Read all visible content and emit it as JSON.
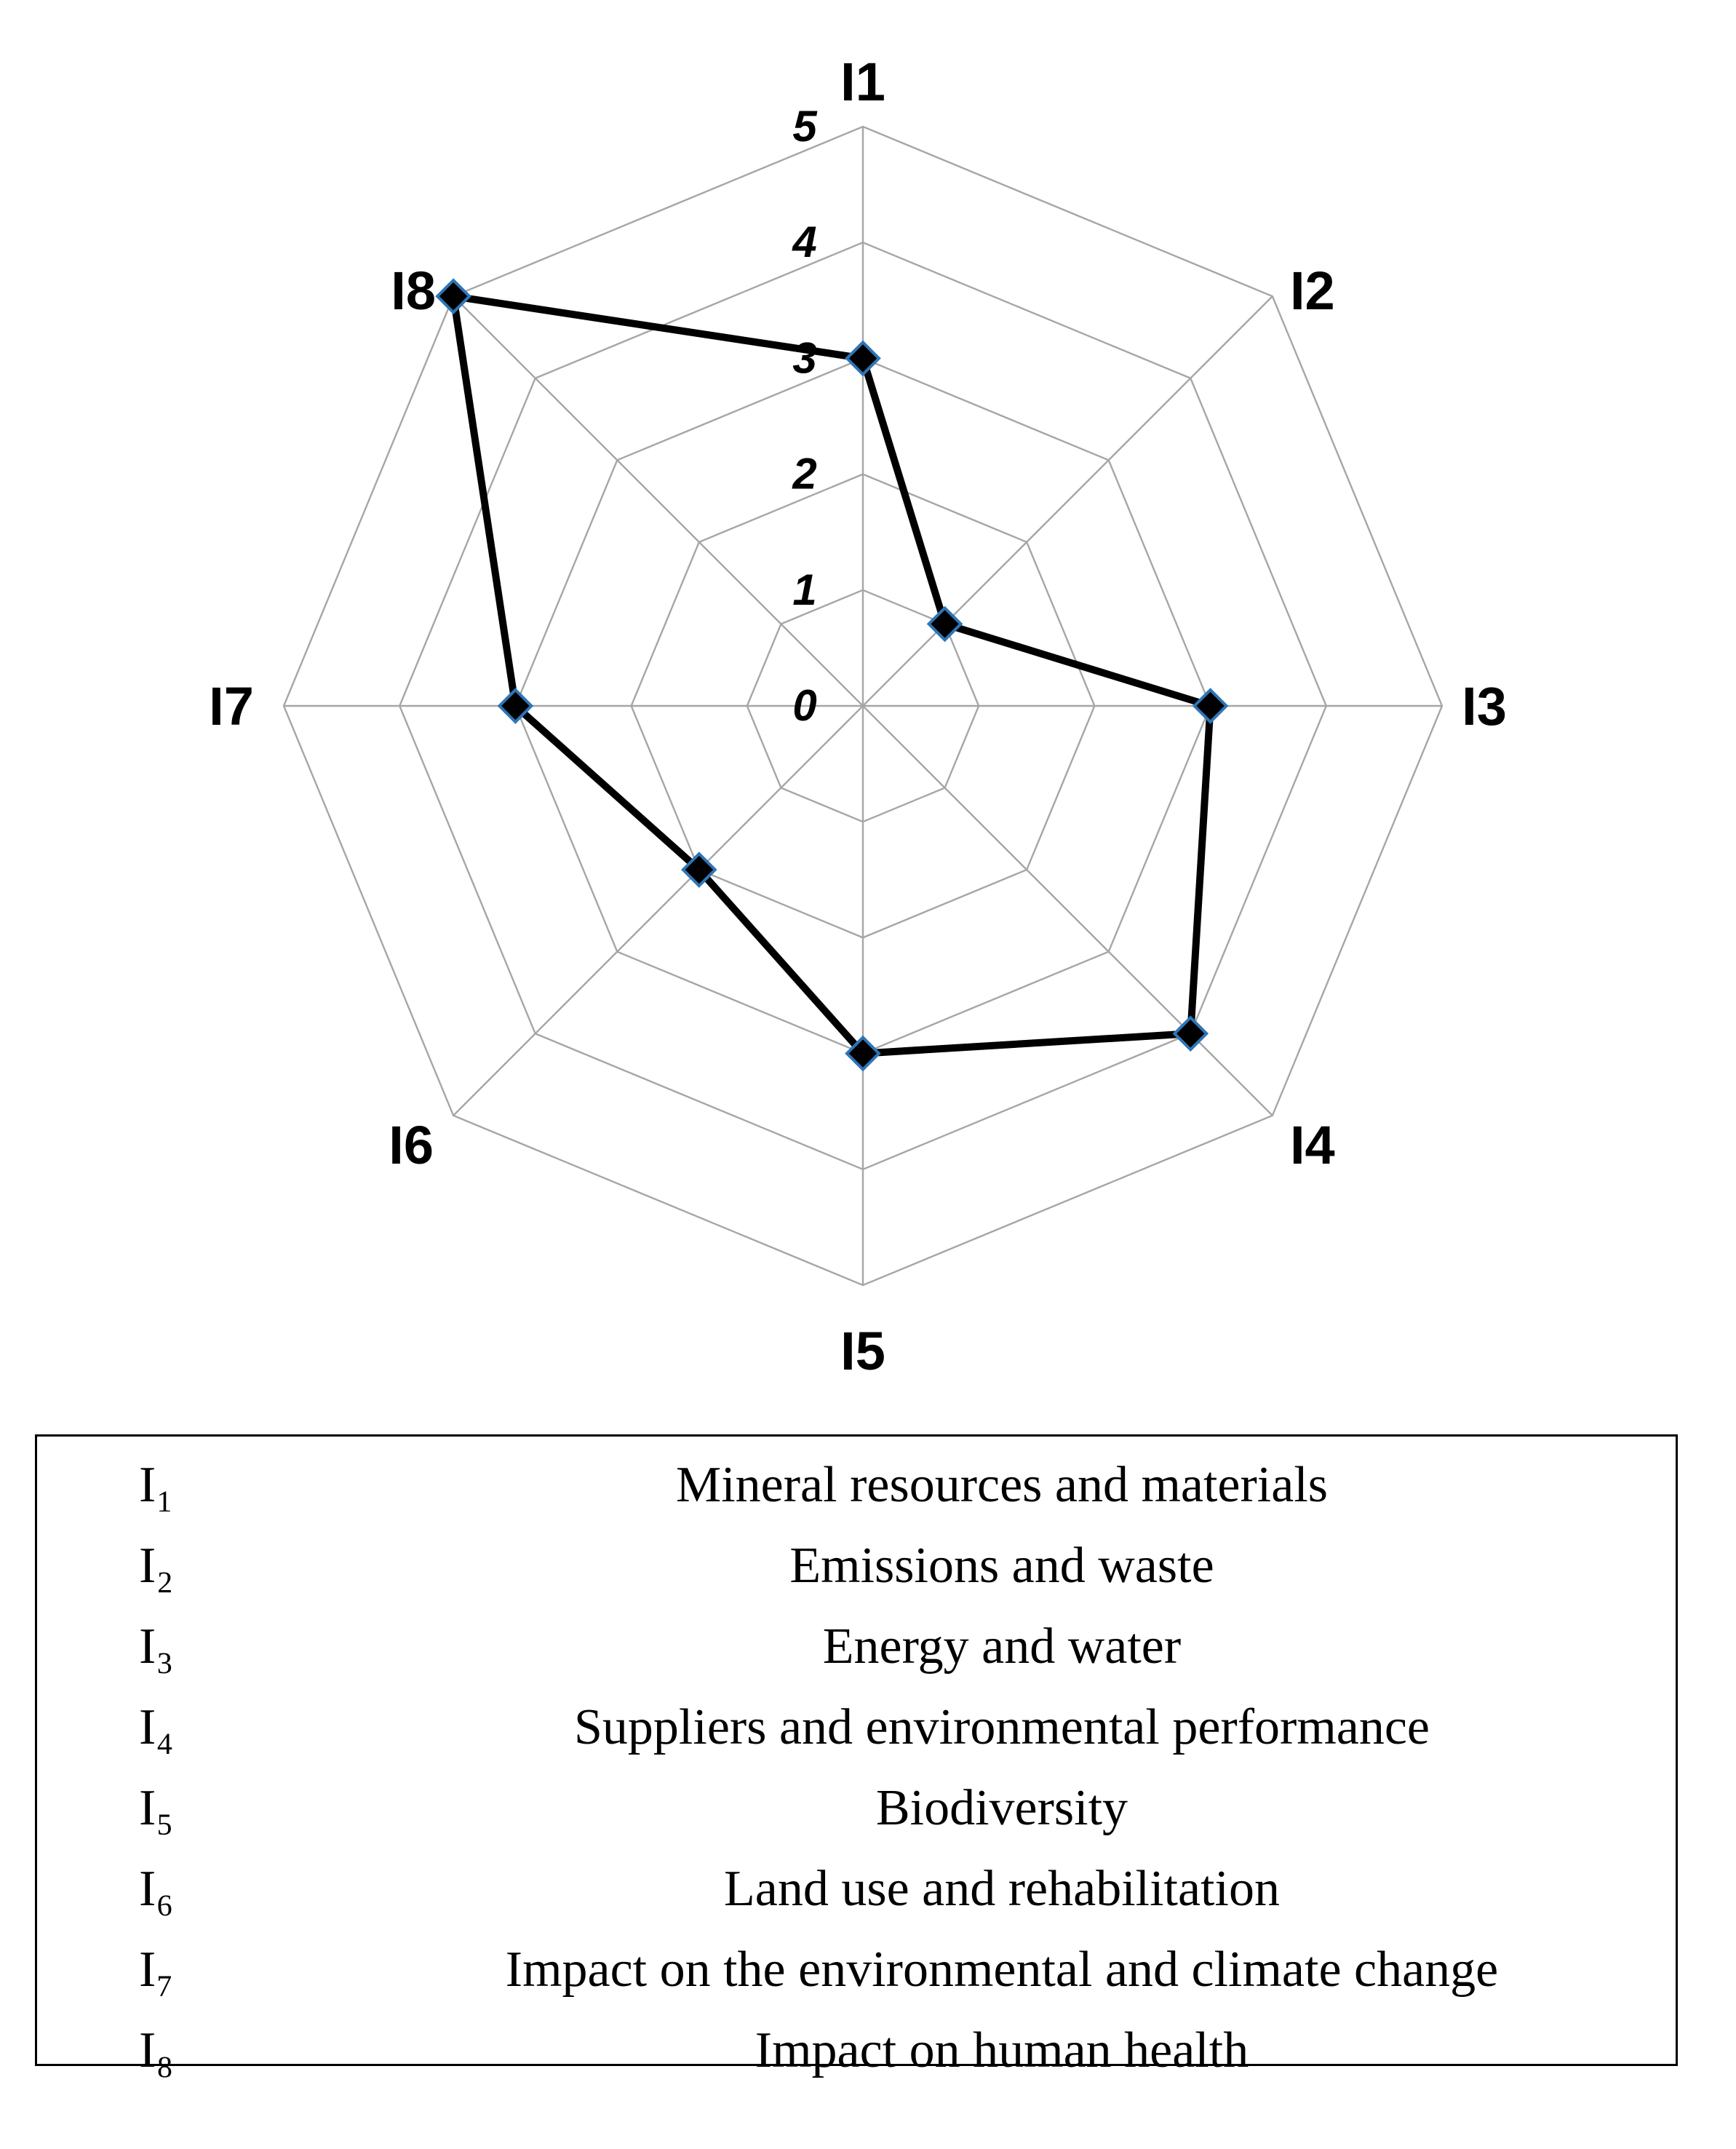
{
  "chart_data": {
    "type": "radar",
    "axes": [
      "I1",
      "I2",
      "I3",
      "I4",
      "I5",
      "I6",
      "I7",
      "I8"
    ],
    "rlim": [
      0,
      5
    ],
    "ticks": [
      "0",
      "1",
      "2",
      "3",
      "4",
      "5"
    ],
    "series": [
      {
        "values": [
          3,
          1,
          3,
          4,
          3,
          2,
          3,
          5
        ]
      }
    ],
    "grid": true
  },
  "legend_table": {
    "rows": [
      {
        "code": "I₁",
        "description": "Mineral resources and materials"
      },
      {
        "code": "I₂",
        "description": "Emissions and waste"
      },
      {
        "code": "I₃",
        "description": "Energy and water"
      },
      {
        "code": "I₄",
        "description": "Suppliers and environmental performance"
      },
      {
        "code": "I₅",
        "description": "Biodiversity"
      },
      {
        "code": "I₆",
        "description": "Land use and rehabilitation"
      },
      {
        "code": "I₇",
        "description": "Impact on the environmental and climate change"
      },
      {
        "code": "I₈",
        "description": "Impact on human health"
      }
    ]
  }
}
